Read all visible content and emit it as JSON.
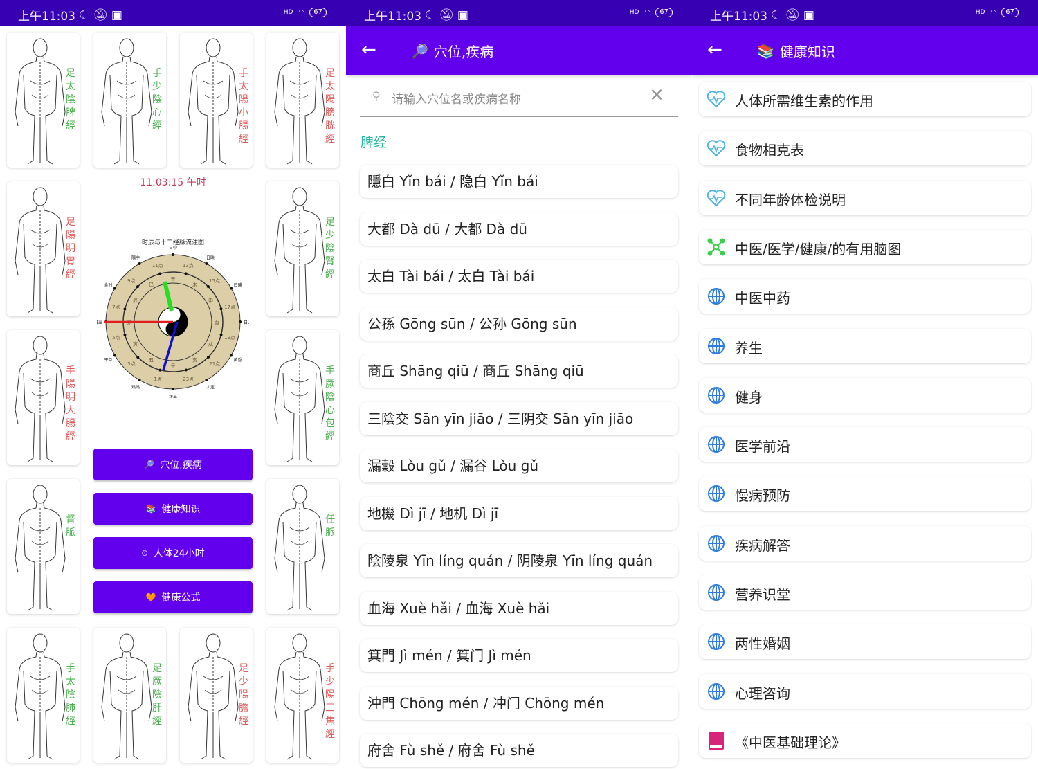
{
  "status": {
    "time": "上午11:03",
    "battery": "67",
    "network": "HD"
  },
  "home": {
    "meridian_cards": [
      {
        "label": "足太陰脾經",
        "color": "green"
      },
      {
        "label": "手少陰心經",
        "color": "green"
      },
      {
        "label": "手太陽小腸經",
        "color": "red"
      },
      {
        "label": "足太陽膀胱經",
        "color": "red"
      },
      {
        "label": "足陽明胃經",
        "color": "red"
      },
      {
        "label": "足少陰腎經",
        "color": "green"
      },
      {
        "label": "手陽明大腸經",
        "color": "red"
      },
      {
        "label": "手厥陰心包經",
        "color": "green"
      },
      {
        "label": "督脈",
        "color": "green"
      },
      {
        "label": "任脈",
        "color": "green"
      },
      {
        "label": "手太陰肺經",
        "color": "green"
      },
      {
        "label": "足厥陰肝經",
        "color": "green"
      },
      {
        "label": "足少陽膽經",
        "color": "red"
      },
      {
        "label": "手少陽三焦經",
        "color": "red"
      }
    ],
    "clock_time": "11:03:15  午时",
    "clock": {
      "title": "时辰与十二经脉流注图",
      "outer_labels": [
        "日中",
        "日昳",
        "日晡",
        "日入",
        "黄昏",
        "人定",
        "夜半",
        "鸡鸣",
        "平旦",
        "日出",
        "食时",
        "隅中"
      ],
      "hour_labels": [
        "13点",
        "15点",
        "17点",
        "19点",
        "21点",
        "23点",
        "1点",
        "3点",
        "5点",
        "7点",
        "9点",
        "11点"
      ],
      "branches": [
        "午",
        "未",
        "申",
        "酉",
        "戌",
        "亥",
        "子",
        "丑",
        "寅",
        "卯",
        "辰",
        "巳"
      ]
    },
    "buttons": [
      {
        "icon": "magnifier-icon",
        "label": "穴位,疾病"
      },
      {
        "icon": "books-icon",
        "label": "健康知识"
      },
      {
        "icon": "timer-icon",
        "label": "人体24小时"
      },
      {
        "icon": "heart-icon",
        "label": "健康公式"
      }
    ]
  },
  "search": {
    "title": "穴位,疾病",
    "placeholder": "请输入穴位名或疾病名称",
    "section": "脾经",
    "items": [
      "隱白 Yǐn bái / 隐白 Yǐn bái",
      "大都 Dà dū / 大都 Dà dū",
      "太白 Tài bái / 太白 Tài bái",
      "公孫 Gōng sūn / 公孙 Gōng sūn",
      "商丘 Shāng qiū / 商丘 Shāng qiū",
      "三陰交 Sān yīn jiāo / 三阴交 Sān yīn jiāo",
      "漏穀 Lòu gǔ / 漏谷 Lòu gǔ",
      "地機 Dì jī / 地机 Dì jī",
      "陰陵泉 Yīn líng quán / 阴陵泉 Yīn líng quán",
      "血海 Xuè hǎi / 血海 Xuè hǎi",
      "箕門 Jì mén / 箕门 Jì mén",
      "沖門 Chōng mén / 冲门 Chōng mén",
      "府舍 Fù shě / 府舍 Fù shě"
    ]
  },
  "knowledge": {
    "title": "健康知识",
    "items": [
      {
        "icon": "heartbeat-icon",
        "label": "人体所需维生素的作用"
      },
      {
        "icon": "heartbeat-icon",
        "label": "食物相克表"
      },
      {
        "icon": "heartbeat-icon",
        "label": "不同年龄体检说明"
      },
      {
        "icon": "mindmap-icon",
        "label": "中医/医学/健康/的有用脑图"
      },
      {
        "icon": "globe-icon",
        "label": "中医中药"
      },
      {
        "icon": "globe-icon",
        "label": "养生"
      },
      {
        "icon": "globe-icon",
        "label": "健身"
      },
      {
        "icon": "globe-icon",
        "label": "医学前沿"
      },
      {
        "icon": "globe-icon",
        "label": "慢病预防"
      },
      {
        "icon": "globe-icon",
        "label": "疾病解答"
      },
      {
        "icon": "globe-icon",
        "label": "营养识堂"
      },
      {
        "icon": "globe-icon",
        "label": "两性婚姻"
      },
      {
        "icon": "globe-icon",
        "label": "心理咨询"
      },
      {
        "icon": "book-icon",
        "label": "《中医基础理论》"
      }
    ]
  },
  "colors": {
    "status_bar": "#3700b3",
    "app_bar": "#6200ee",
    "section": "#26b5a0",
    "green_label": "#4caf50",
    "red_label": "#e05a5a"
  }
}
